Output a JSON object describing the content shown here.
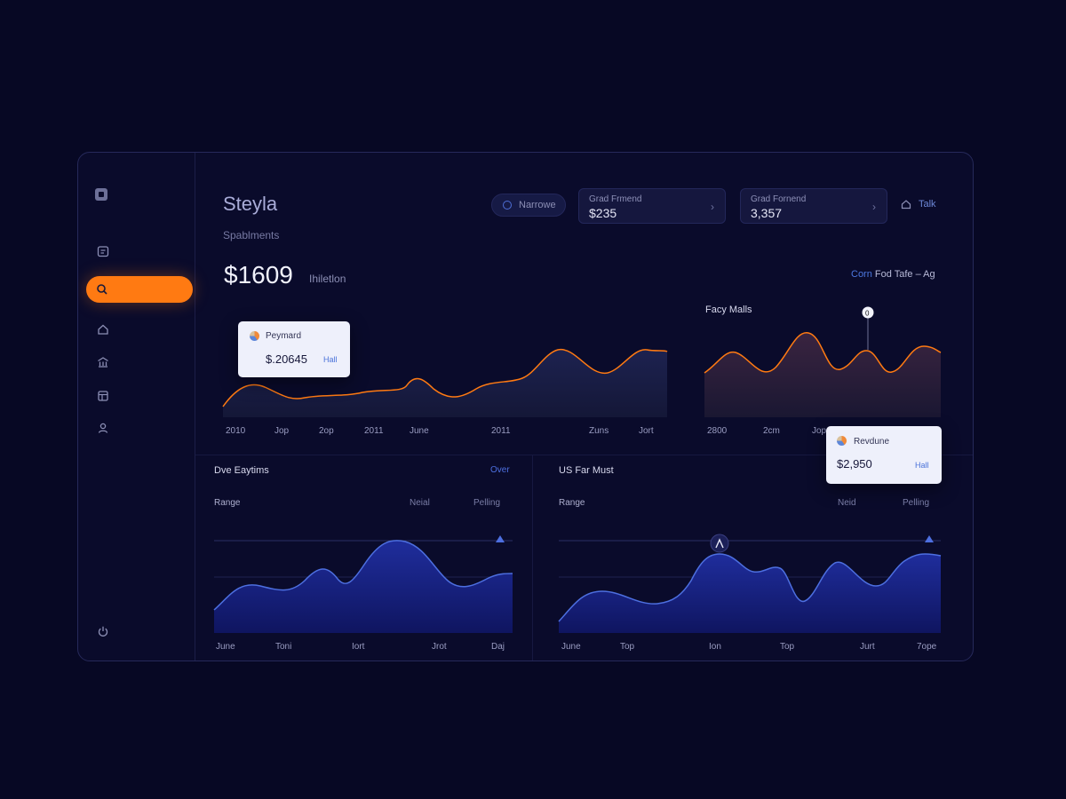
{
  "app": {
    "title": "Steyla",
    "subtitle": "Spablments"
  },
  "header": {
    "pill_label": "Narrowe",
    "cards": [
      {
        "label": "Grad Frmend",
        "value": "$235"
      },
      {
        "label": "Grad Fornend",
        "value": "3,357"
      }
    ],
    "talk_label": "Talk"
  },
  "summary": {
    "value": "$1609",
    "label": "Ihiletlon"
  },
  "range_link": {
    "accent": "Corn",
    "text": "Fod Tafe – Ag"
  },
  "main_chart": {
    "tooltip": {
      "label": "Peymard",
      "value": "$.20645",
      "link": "Hall"
    },
    "x_labels": [
      "2010",
      "Jop",
      "2op",
      "2011",
      "June",
      "2011",
      "Zuns",
      "Jort"
    ]
  },
  "side_chart": {
    "title": "Facy Malls",
    "marker_label": "0",
    "tooltip": {
      "label": "Revdune",
      "value": "$2,950",
      "link": "Hall"
    },
    "x_labels": [
      "2800",
      "2cm",
      "Jop"
    ]
  },
  "panel_left": {
    "title": "Dve Eaytims",
    "link": "Over",
    "sub": "Range",
    "col1": "Neial",
    "col2": "Pelling",
    "x_labels": [
      "June",
      "Toni",
      "Iort",
      "Jrot",
      "Daj"
    ]
  },
  "panel_right": {
    "title": "US Far Must",
    "sub": "Range",
    "col1": "Neid",
    "col2": "Pelling",
    "x_labels": [
      "June",
      "Top",
      "Ion",
      "Top",
      "Jurt",
      "7ope"
    ]
  },
  "colors": {
    "accent_orange": "#ff7a12",
    "accent_blue": "#4d6fe0",
    "background": "#070824"
  },
  "icons": {
    "nav": [
      "calendar-icon",
      "search-icon",
      "home-icon",
      "bank-icon",
      "layout-icon",
      "user-icon",
      "power-icon"
    ]
  }
}
